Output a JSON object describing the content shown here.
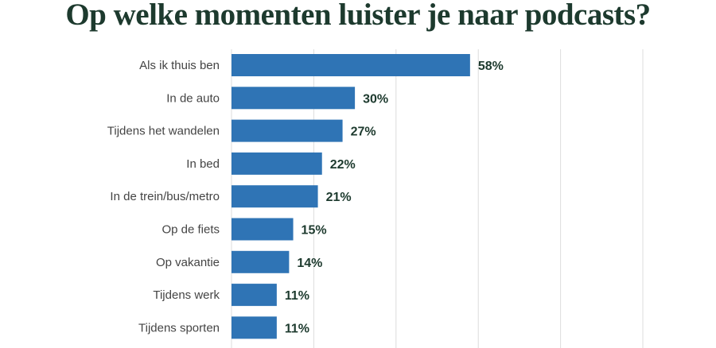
{
  "chart_data": {
    "type": "bar",
    "orientation": "horizontal",
    "title": "Op welke momenten luister je naar podcasts?",
    "categories": [
      "Als ik thuis ben",
      "In de auto",
      "Tijdens het wandelen",
      "In bed",
      "In de trein/bus/metro",
      "Op de fiets",
      "Op vakantie",
      "Tijdens werk",
      "Tijdens sporten"
    ],
    "values": [
      58,
      30,
      27,
      22,
      21,
      15,
      14,
      11,
      11
    ],
    "data_labels": [
      "58%",
      "30%",
      "27%",
      "22%",
      "21%",
      "15%",
      "14%",
      "11%",
      "11%"
    ],
    "xlim": [
      0,
      100
    ],
    "grid": true,
    "bar_color": "#2f74b5",
    "title_color": "#1d3a2e"
  }
}
